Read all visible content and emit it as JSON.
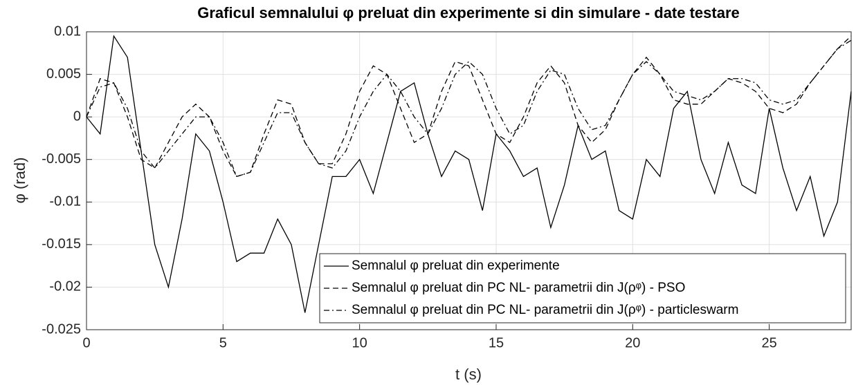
{
  "chart_data": {
    "type": "line",
    "title": "Graficul semnalului φ preluat din experimente si din simulare - date testare",
    "xlabel": "t (s)",
    "ylabel": "φ (rad)",
    "x": [
      0,
      0.5,
      1,
      1.5,
      2,
      2.5,
      3,
      3.5,
      4,
      4.5,
      5,
      5.5,
      6,
      6.5,
      7,
      7.5,
      8,
      8.5,
      9,
      9.5,
      10,
      10.5,
      11,
      11.5,
      12,
      12.5,
      13,
      13.5,
      14,
      14.5,
      15,
      15.5,
      16,
      16.5,
      17,
      17.5,
      18,
      18.5,
      19,
      19.5,
      20,
      20.5,
      21,
      21.5,
      22,
      22.5,
      23,
      23.5,
      24,
      24.5,
      25,
      25.5,
      26,
      26.5,
      27,
      27.5,
      28
    ],
    "series": [
      {
        "name": "Semnalul φ preluat din experimente",
        "color": "#000000",
        "dash": "solid",
        "values": [
          0,
          -0.002,
          0.0095,
          0.007,
          -0.004,
          -0.015,
          -0.02,
          -0.012,
          -0.002,
          -0.004,
          -0.01,
          -0.017,
          -0.016,
          -0.016,
          -0.012,
          -0.015,
          -0.023,
          -0.015,
          -0.007,
          -0.007,
          -0.005,
          -0.009,
          -0.003,
          0.003,
          0.004,
          -0.002,
          -0.007,
          -0.004,
          -0.005,
          -0.011,
          -0.002,
          -0.004,
          -0.007,
          -0.006,
          -0.013,
          -0.008,
          -0.001,
          -0.005,
          -0.004,
          -0.011,
          -0.012,
          -0.005,
          -0.007,
          0.001,
          0.003,
          -0.005,
          -0.009,
          -0.003,
          -0.008,
          -0.009,
          0.001,
          -0.006,
          -0.011,
          -0.007,
          -0.014,
          -0.01,
          0.003
        ]
      },
      {
        "name": "Semnalul φ preluat din PC NL- parametrii din J(ρᵠ) - PSO",
        "color": "#000000",
        "dash": "dashed",
        "values": [
          0,
          0.0045,
          0.004,
          0,
          -0.005,
          -0.006,
          -0.003,
          0,
          0.0015,
          0,
          -0.004,
          -0.007,
          -0.0065,
          -0.002,
          0.002,
          0.0015,
          -0.003,
          -0.0055,
          -0.0055,
          -0.002,
          0.003,
          0.006,
          0.005,
          0.001,
          -0.003,
          -0.002,
          0.003,
          0.0065,
          0.006,
          0.002,
          -0.002,
          -0.003,
          0,
          0.004,
          0.006,
          0.004,
          -0.001,
          -0.003,
          -0.0015,
          0.002,
          0.005,
          0.007,
          0.005,
          0.002,
          0.0015,
          0.0015,
          0.003,
          0.0045,
          0.004,
          0.003,
          0.001,
          0.0005,
          0.0015,
          0.004,
          0.006,
          0.008,
          0.0095
        ]
      },
      {
        "name": "Semnalul φ preluat din PC NL- parametrii din J(ρᵠ) - particleswarm",
        "color": "#000000",
        "dash": "dashdot",
        "values": [
          0,
          0.0035,
          0.004,
          0.001,
          -0.004,
          -0.006,
          -0.004,
          -0.002,
          0,
          0,
          -0.003,
          -0.007,
          -0.0065,
          -0.003,
          0.0005,
          0.0005,
          -0.003,
          -0.0055,
          -0.006,
          -0.004,
          0,
          0.003,
          0.005,
          0.003,
          0,
          -0.002,
          0.001,
          0.005,
          0.0065,
          0.005,
          0.001,
          -0.002,
          -0.001,
          0.003,
          0.0055,
          0.005,
          0.001,
          -0.0015,
          -0.001,
          0.002,
          0.005,
          0.0065,
          0.005,
          0.003,
          0.0025,
          0.002,
          0.003,
          0.0045,
          0.0045,
          0.004,
          0.002,
          0.0015,
          0.002,
          0.004,
          0.006,
          0.008,
          0.009
        ]
      }
    ],
    "xlim": [
      0,
      28
    ],
    "ylim": [
      -0.025,
      0.01
    ],
    "xticks": [
      0,
      5,
      10,
      15,
      20,
      25
    ],
    "yticks": [
      -0.025,
      -0.02,
      -0.015,
      -0.01,
      -0.005,
      0,
      0.005,
      0.01
    ],
    "grid": true,
    "legend": "lower right"
  }
}
